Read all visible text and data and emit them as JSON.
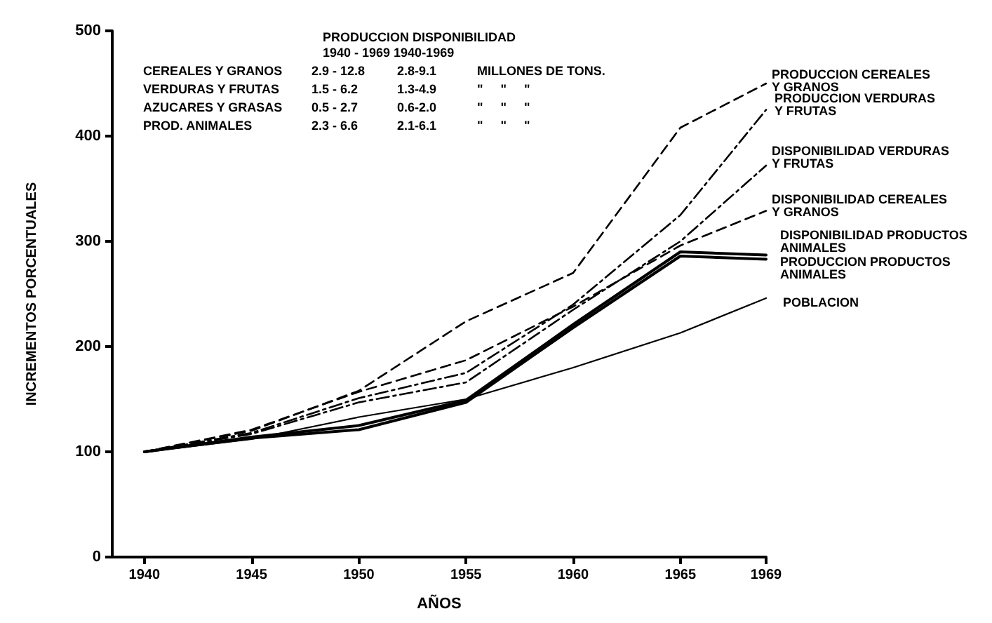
{
  "chart_data": {
    "type": "line",
    "xlabel": "AÑOS",
    "ylabel": "INCREMENTOS PORCENTUALES",
    "x": [
      1940,
      1945,
      1950,
      1955,
      1960,
      1965,
      1969
    ],
    "xlim": [
      1938.5,
      1969
    ],
    "xticks": [
      1940,
      1945,
      1950,
      1955,
      1960,
      1965,
      1969
    ],
    "ylim": [
      0,
      500
    ],
    "yticks": [
      0,
      100,
      200,
      300,
      400,
      500
    ],
    "grid": false,
    "marker": "none",
    "series": [
      {
        "name": "PRODUCCION CEREALES\nY GRANOS",
        "color": "#000000",
        "line_style": "dashed",
        "values": [
          100,
          120,
          158,
          224,
          270,
          408,
          450
        ]
      },
      {
        "name": "PRODUCCION VERDURAS\nY FRUTAS",
        "color": "#000000",
        "line_style": "dashdot",
        "values": [
          100,
          118,
          151,
          175,
          240,
          325,
          425
        ]
      },
      {
        "name": "DISPONIBILIDAD VERDURAS\nY FRUTAS",
        "color": "#000000",
        "line_style": "dashdot",
        "values": [
          100,
          117,
          147,
          166,
          235,
          300,
          372
        ]
      },
      {
        "name": "DISPONIBILIDAD CEREALES\nY GRANOS",
        "color": "#000000",
        "line_style": "dashed",
        "values": [
          100,
          121,
          157,
          187,
          238,
          296,
          329
        ]
      },
      {
        "name": "DISPONIBILIDAD PRODUCTOS\nANIMALES",
        "color": "#000000",
        "line_style": "solid",
        "values": [
          100,
          114,
          125,
          149,
          221,
          290,
          287
        ]
      },
      {
        "name": "PRODUCCION PRODUCTOS\nANIMALES",
        "color": "#000000",
        "line_style": "solid",
        "values": [
          100,
          113,
          121,
          147,
          218,
          286,
          283
        ]
      },
      {
        "name": "POBLACION",
        "color": "#000000",
        "line_style": "solid",
        "values": [
          100,
          112,
          133,
          150,
          180,
          213,
          246
        ]
      }
    ],
    "annotations": [
      "PRODUCCION DISPONIBILIDAD",
      "1940 - 1969 1940-1969",
      "CEREALES Y GRANOS",
      "2.9 - 12.8",
      "2.8-9.1",
      "MILLONES DE TONS.",
      "VERDURAS Y FRUTAS",
      "1.5 - 6.2",
      "1.3-4.9",
      "\"     \"     \"",
      "AZUCARES Y GRASAS",
      "0.5 - 2.7",
      "0.6-2.0",
      "\"     \"     \"",
      "PROD. ANIMALES",
      "2.3 - 6.6",
      "2.1-6.1",
      "\"     \"     \""
    ]
  }
}
